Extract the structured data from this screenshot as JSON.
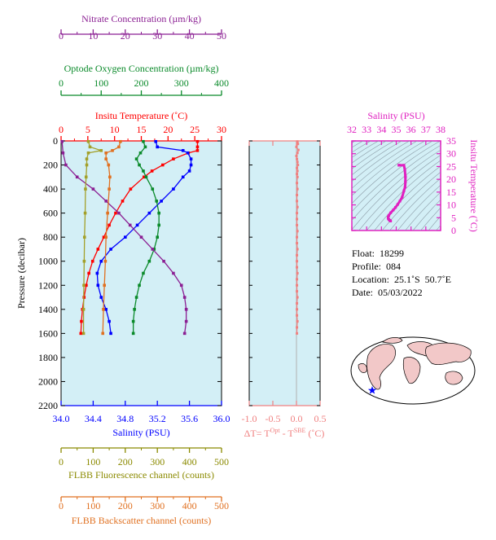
{
  "info": {
    "float": "Float:  18299",
    "profile": "Profile:  084",
    "location": "Location:  25.1˚S  50.7˚E",
    "date": "Date:  05/03/2022"
  },
  "colors": {
    "panel_bg": "#d3eff6",
    "temperature": "#ff0000",
    "salinity": "#0000ff",
    "oxygen": "#0a8a2a",
    "nitrate": "#8b1f93",
    "fluorescence": "#a3a02a",
    "backscatter": "#e07020",
    "delta_t": "#f08080",
    "ts": "#e020c0",
    "axis_olive": "#8b8a00",
    "map_land": "#f2c8c8",
    "map_sea": "#ffffff"
  },
  "chart_data": [
    {
      "type": "line",
      "panel": "main-profile",
      "ylabel": "Pressure (decibar)",
      "ylim": [
        2200,
        0
      ],
      "yticks": [
        "0",
        "200",
        "400",
        "600",
        "800",
        "1000",
        "1200",
        "1400",
        "1600",
        "1800",
        "2000",
        "2200"
      ],
      "axes": {
        "nitrate": {
          "label": "Nitrate Concentration (µm/kg)",
          "range": [
            0,
            50
          ],
          "ticks": [
            "0",
            "10",
            "20",
            "30",
            "40",
            "50"
          ]
        },
        "oxygen": {
          "label": "Optode Oxygen Concentration (µm/kg)",
          "range": [
            0,
            400
          ],
          "ticks": [
            "0",
            "100",
            "200",
            "300",
            "400"
          ]
        },
        "temperature": {
          "label": "Insitu Temperature (˚C)",
          "range": [
            0,
            30
          ],
          "ticks": [
            "0",
            "5",
            "10",
            "15",
            "20",
            "25",
            "30"
          ]
        },
        "salinity": {
          "label": "Salinity (PSU)",
          "range": [
            34.0,
            36.0
          ],
          "ticks": [
            "34.0",
            "34.4",
            "34.8",
            "35.2",
            "35.6",
            "36.0"
          ]
        },
        "fluorescence": {
          "label": "FLBB Fluorescence channel (counts)",
          "range": [
            0,
            500
          ],
          "ticks": [
            "0",
            "100",
            "200",
            "300",
            "400",
            "500"
          ]
        },
        "backscatter": {
          "label": "FLBB Backscatter channel (counts)",
          "range": [
            0,
            500
          ],
          "ticks": [
            "0",
            "100",
            "200",
            "300",
            "400",
            "500"
          ]
        }
      },
      "series": [
        {
          "name": "Insitu Temperature (˚C)",
          "axis": "temperature",
          "pressure": [
            5,
            50,
            80,
            100,
            150,
            200,
            250,
            300,
            400,
            500,
            600,
            700,
            800,
            900,
            1000,
            1100,
            1200,
            1300,
            1400,
            1500,
            1600
          ],
          "values": [
            25.5,
            25.5,
            25.5,
            23.8,
            21.0,
            19.0,
            17.0,
            15.5,
            13.0,
            11.5,
            10.2,
            9.0,
            8.0,
            6.9,
            5.9,
            5.2,
            4.7,
            4.3,
            4.0,
            3.8,
            3.7
          ]
        },
        {
          "name": "Salinity (PSU)",
          "axis": "salinity",
          "pressure": [
            5,
            50,
            80,
            100,
            150,
            200,
            250,
            300,
            400,
            500,
            600,
            700,
            800,
            900,
            1000,
            1100,
            1200,
            1300,
            1400,
            1500,
            1600
          ],
          "values": [
            35.18,
            35.2,
            35.52,
            35.58,
            35.62,
            35.62,
            35.6,
            35.52,
            35.4,
            35.25,
            35.1,
            34.95,
            34.8,
            34.62,
            34.5,
            34.45,
            34.46,
            34.5,
            34.56,
            34.6,
            34.62
          ]
        },
        {
          "name": "Optode Oxygen Concentration (µm/kg)",
          "axis": "oxygen",
          "pressure": [
            5,
            50,
            100,
            150,
            200,
            250,
            300,
            400,
            500,
            600,
            700,
            800,
            900,
            1000,
            1100,
            1200,
            1300,
            1400,
            1500,
            1600
          ],
          "values": [
            205,
            210,
            198,
            188,
            195,
            205,
            212,
            228,
            238,
            244,
            244,
            240,
            232,
            220,
            205,
            195,
            188,
            183,
            180,
            180
          ]
        },
        {
          "name": "Nitrate Concentration (µm/kg)",
          "axis": "nitrate",
          "pressure": [
            5,
            100,
            200,
            300,
            400,
            500,
            600,
            700,
            800,
            900,
            1000,
            1100,
            1200,
            1300,
            1400,
            1500,
            1600
          ],
          "values": [
            0.3,
            0.6,
            1.5,
            5.0,
            10.0,
            14.0,
            18.0,
            21.5,
            25.0,
            28.5,
            32.0,
            35.0,
            37.5,
            38.5,
            39.0,
            39.0,
            38.5
          ]
        },
        {
          "name": "FLBB Fluorescence channel (counts)",
          "axis": "fluorescence",
          "pressure": [
            5,
            50,
            80,
            100,
            150,
            200,
            300,
            400,
            600,
            800,
            1000,
            1200,
            1400,
            1600
          ],
          "values": [
            85,
            90,
            125,
            85,
            80,
            80,
            78,
            76,
            75,
            73,
            72,
            71,
            70,
            70
          ]
        },
        {
          "name": "FLBB Backscatter channel (counts)",
          "axis": "backscatter",
          "pressure": [
            5,
            50,
            80,
            100,
            150,
            200,
            300,
            400,
            600,
            800,
            1000,
            1200,
            1400,
            1600
          ],
          "values": [
            185,
            180,
            160,
            140,
            140,
            148,
            152,
            150,
            145,
            140,
            138,
            135,
            132,
            130
          ]
        }
      ]
    },
    {
      "type": "line",
      "panel": "delta-t",
      "xlabel": "ΔT= T",
      "xlabel_sup1": "Opt",
      "xlabel_mid": " - T",
      "xlabel_sup2": "SBE",
      "xlabel_unit": " (˚C)",
      "xlim": [
        -1.0,
        0.5
      ],
      "xticks": [
        "-1.0",
        "-0.5",
        "0.0",
        "0.5"
      ],
      "ylim": [
        2200,
        0
      ],
      "series": [
        {
          "name": "ΔT",
          "pressure": [
            5,
            25,
            50,
            75,
            100,
            125,
            150,
            175,
            200,
            225,
            250,
            275,
            300,
            350,
            400,
            450,
            500,
            550,
            600,
            650,
            700,
            750,
            800,
            850,
            900,
            950,
            1000,
            1050,
            1100,
            1150,
            1200,
            1250,
            1300,
            1350,
            1400,
            1450,
            1500,
            1550,
            1600
          ],
          "values": [
            0.02,
            0.03,
            0.0,
            0.04,
            0.02,
            0.0,
            0.01,
            0.02,
            0.03,
            0.01,
            0.02,
            0.01,
            0.02,
            0.01,
            0.02,
            0.01,
            0.01,
            0.02,
            0.01,
            0.01,
            0.01,
            0.02,
            0.01,
            0.01,
            0.02,
            0.01,
            0.01,
            0.01,
            0.02,
            0.01,
            0.01,
            0.01,
            0.02,
            0.01,
            0.01,
            0.01,
            0.02,
            0.01,
            0.01
          ]
        }
      ]
    },
    {
      "type": "scatter",
      "panel": "ts-diagram",
      "xlabel": "Salinity (PSU)",
      "ylabel": "Insitu Temperature (˚C)",
      "xlim": [
        32,
        38
      ],
      "ylim": [
        0,
        35
      ],
      "xticks": [
        "32",
        "33",
        "34",
        "35",
        "36",
        "37",
        "38"
      ],
      "yticks": [
        "0",
        "5",
        "10",
        "15",
        "20",
        "25",
        "30",
        "35"
      ],
      "series": [
        {
          "name": "T-S",
          "x": [
            34.62,
            34.6,
            34.56,
            34.5,
            34.46,
            34.45,
            34.5,
            34.62,
            34.8,
            34.95,
            35.1,
            35.25,
            35.4,
            35.52,
            35.6,
            35.62,
            35.62,
            35.58,
            35.52,
            35.2,
            35.18
          ],
          "y": [
            3.7,
            3.8,
            4.0,
            4.3,
            4.7,
            5.2,
            5.9,
            6.9,
            8.0,
            9.0,
            10.2,
            11.5,
            13.0,
            15.5,
            17.0,
            19.0,
            21.0,
            23.8,
            25.5,
            25.5,
            25.5
          ]
        }
      ]
    }
  ]
}
